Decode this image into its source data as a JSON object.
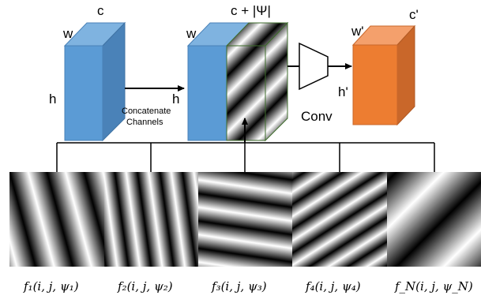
{
  "diagram": {
    "block1": {
      "w": "w",
      "c": "c",
      "h": "h"
    },
    "block2": {
      "w": "w",
      "c": "c  + |Ψ|",
      "h": "h"
    },
    "block3": {
      "w": "w'",
      "c": "c'",
      "h": "h'"
    },
    "concat_label_line1": "Concatenate",
    "concat_label_line2": "Channels",
    "conv_label": "Conv",
    "filters": [
      {
        "label": "f₁(i, j, ψ₁)"
      },
      {
        "label": "f₂(i, j, ψ₂)"
      },
      {
        "label": "f₃(i, j, ψ₃)"
      },
      {
        "label": "f₄(i, j, ψ₄)"
      },
      {
        "label": "f_N(i, j, ψ_N)"
      }
    ],
    "colors": {
      "blue_front": "#5b9bd5",
      "blue_top": "#7fb3e0",
      "blue_side": "#4a82b8",
      "orange_front": "#ed7d31",
      "orange_top": "#f4a06c",
      "orange_side": "#c9672a",
      "green_edge": "#3d6b2b"
    }
  }
}
